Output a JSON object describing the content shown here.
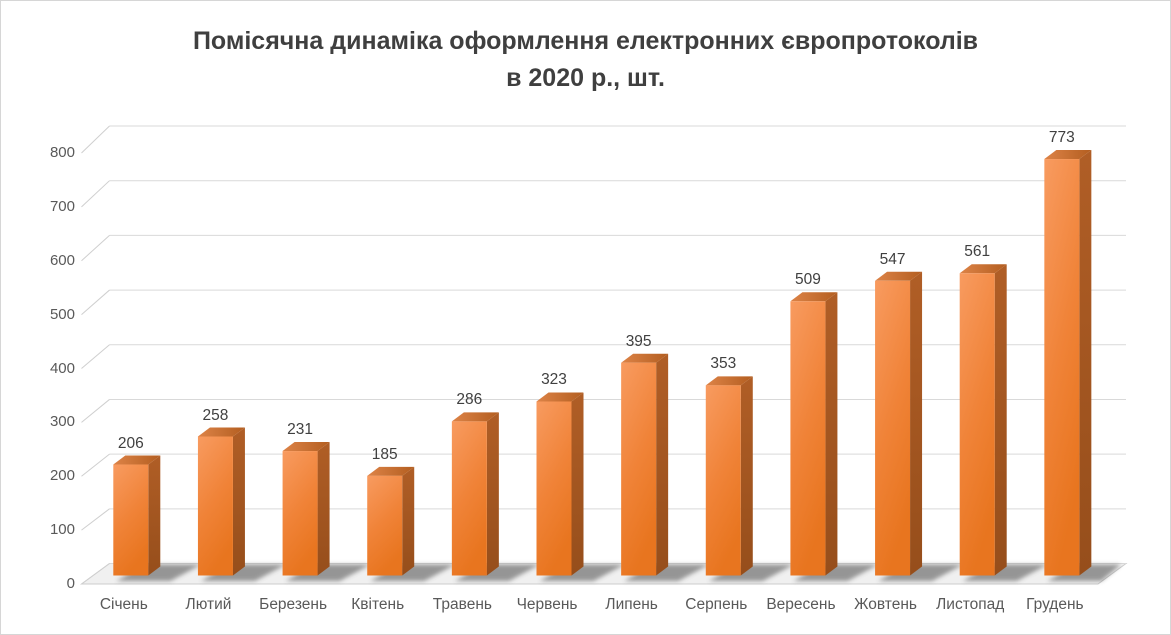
{
  "title": {
    "line1": "Помісячна динаміка оформлення електронних європротоколів",
    "line2": "в 2020 р., шт."
  },
  "chart_data": {
    "type": "bar",
    "style": "excel-3d-column",
    "title": "Помісячна динаміка оформлення електронних європротоколів в 2020 р., шт.",
    "categories": [
      "Січень",
      "Лютий",
      "Березень",
      "Квітень",
      "Травень",
      "Червень",
      "Липень",
      "Серпень",
      "Вересень",
      "Жовтень",
      "Листопад",
      "Грудень"
    ],
    "values": [
      206,
      258,
      231,
      185,
      286,
      323,
      395,
      353,
      509,
      547,
      561,
      773
    ],
    "data_labels_shown": true,
    "xlabel": "",
    "ylabel": "",
    "ylim": [
      0,
      800
    ],
    "yticks": [
      0,
      100,
      200,
      300,
      400,
      500,
      600,
      700,
      800
    ],
    "grid": true,
    "legend": false,
    "colors": {
      "bar_front_light": "#F89B60",
      "bar_front_dark": "#E8751F",
      "bar_top_light": "#DD8347",
      "bar_top_dark": "#B35E20",
      "bar_side_light": "#B05E26",
      "bar_side_dark": "#964E1B",
      "gridline": "#D9D9D9",
      "floor": "#F0F0F0",
      "axis_text": "#595959",
      "value_text": "#404040",
      "title_text": "#3F3F3F"
    }
  }
}
